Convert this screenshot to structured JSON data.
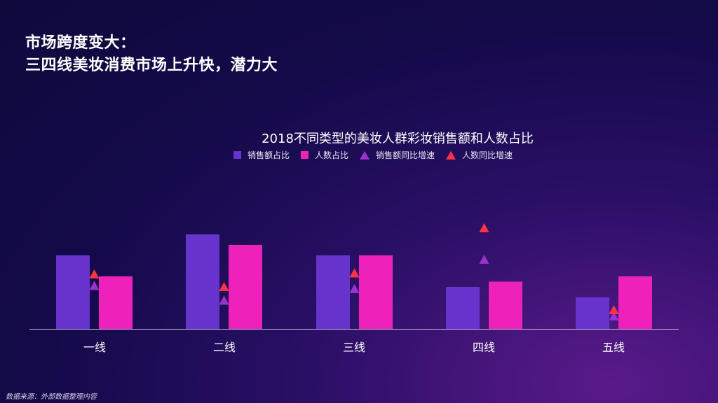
{
  "slide": {
    "title_line1": "市场跨度变大：",
    "title_line2": "三四线美妆消费市场上升快，潜力大",
    "source": "数据来源：外部数据整理内容"
  },
  "chart_data": {
    "type": "bar",
    "title": "2018不同类型的美妆人群彩妆销售额和人数占比",
    "categories": [
      "一线",
      "二线",
      "三线",
      "四线",
      "五线"
    ],
    "series": [
      {
        "name": "销售额占比",
        "kind": "bar",
        "color": "#6633cc",
        "values": [
          35,
          45,
          35,
          20,
          15
        ]
      },
      {
        "name": "人数占比",
        "kind": "bar",
        "color": "#ee22bb",
        "values": [
          25,
          40,
          35,
          22.5,
          25
        ]
      },
      {
        "name": "销售额同比增速",
        "kind": "marker",
        "color": "#9933cc",
        "values": [
          20.5,
          13.5,
          19,
          33,
          6
        ]
      },
      {
        "name": "人数同比增速",
        "kind": "marker",
        "color": "#ff3344",
        "values": [
          26,
          20,
          26.5,
          48,
          9
        ]
      }
    ],
    "ylim": [
      0,
      60
    ],
    "grid": false,
    "legend_position": "top",
    "xlabel": "",
    "ylabel": ""
  }
}
